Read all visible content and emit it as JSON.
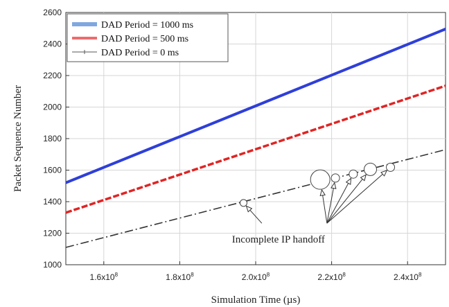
{
  "chart_data": {
    "type": "line",
    "title": "",
    "xlabel": "Simulation Time (µs)",
    "ylabel": "Packet Sequence Number",
    "xlim": [
      150000000,
      250000000
    ],
    "ylim": [
      1000,
      2600
    ],
    "x_ticks": [
      160000000,
      180000000,
      200000000,
      220000000,
      240000000
    ],
    "x_tick_labels": [
      {
        "mant": "1.6x10",
        "exp": "8"
      },
      {
        "mant": "1.8x10",
        "exp": "8"
      },
      {
        "mant": "2.0x10",
        "exp": "8"
      },
      {
        "mant": "2.2x10",
        "exp": "8"
      },
      {
        "mant": "2.4x10",
        "exp": "8"
      }
    ],
    "y_ticks": [
      1000,
      1200,
      1400,
      1600,
      1800,
      2000,
      2200,
      2400,
      2600
    ],
    "y_tick_labels": [
      "1000",
      "1200",
      "1400",
      "1600",
      "1800",
      "2000",
      "2200",
      "2400",
      "2600"
    ],
    "grid": true,
    "legend_position": "top-left",
    "series": [
      {
        "name": "DAD Period = 1000 ms",
        "color": "#2e3fd8",
        "legend_color": "#7fa8e0",
        "style": "solid",
        "x": [
          150000000,
          250000000
        ],
        "y": [
          1520,
          2495
        ]
      },
      {
        "name": "DAD Period = 500 ms",
        "color": "#e02424",
        "legend_color": "#ef6b6b",
        "style": "dashed",
        "x": [
          150000000,
          250000000
        ],
        "y": [
          1330,
          2135
        ]
      },
      {
        "name": "DAD Period = 0 ms",
        "color": "#333333",
        "legend_color": "#555555",
        "style": "dashdot",
        "x": [
          150000000,
          250000000
        ],
        "y": [
          1110,
          1730
        ]
      }
    ],
    "annotation": {
      "text": "Incomplete IP handoff",
      "text_x": 206000000,
      "text_y": 1140,
      "markers": [
        {
          "x": 196800000,
          "y": 1392,
          "r": 5
        },
        {
          "x": 217000000,
          "y": 1540,
          "r": 14
        },
        {
          "x": 221000000,
          "y": 1550,
          "r": 6
        },
        {
          "x": 225700000,
          "y": 1575,
          "r": 6
        },
        {
          "x": 230200000,
          "y": 1605,
          "r": 9
        },
        {
          "x": 235500000,
          "y": 1618,
          "r": 6
        }
      ]
    }
  }
}
